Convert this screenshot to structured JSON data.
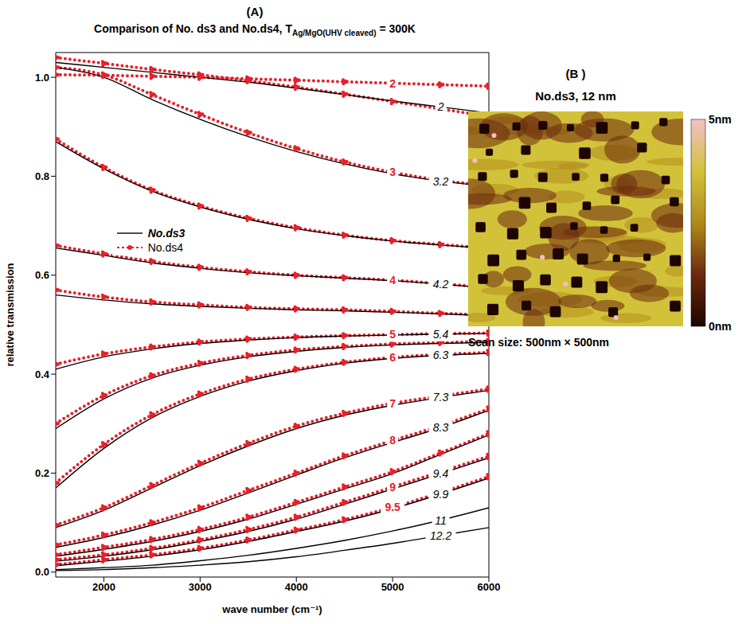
{
  "chart_data": [
    {
      "type": "line",
      "panel_label": "(A)",
      "title": "Comparison of No. ds3 and No.ds4, T",
      "title_subscript": "Ag/MgO(UHV cleaved)",
      "title_suffix": " = 300K",
      "x_label": "wave number (cm⁻¹)",
      "y_label": "relative transmission",
      "x": [
        1500,
        2000,
        2500,
        3000,
        3500,
        4000,
        4500,
        5000,
        5500,
        6000
      ],
      "xlim": [
        1500,
        6000
      ],
      "xticks": [
        2000,
        3000,
        4000,
        5000,
        6000
      ],
      "ylim": [
        -0.01,
        1.05
      ],
      "yticks": [
        {
          "value": 0,
          "label": "0.0"
        },
        0.2,
        0.4,
        0.6,
        0.8,
        {
          "value": 1,
          "label": "1.0"
        }
      ],
      "legend": "left",
      "series": [
        {
          "name": "No.ds4",
          "color": "#e8202a",
          "line_style": "dotted",
          "marker": "circle",
          "curves": [
            {
              "label": 2,
              "values": [
                1.005,
                1.004,
                1.002,
                1.0,
                0.997,
                0.994,
                0.991,
                0.988,
                0.985,
                0.982
              ]
            },
            {
              "label": null,
              "values": [
                1.04,
                1.028,
                1.016,
                1.005,
                0.993,
                0.98,
                0.966,
                0.951,
                0.936,
                0.921
              ]
            },
            {
              "label": 3,
              "values": [
                1.02,
                1.005,
                0.965,
                0.925,
                0.888,
                0.856,
                0.829,
                0.808,
                0.792,
                0.781
              ]
            },
            {
              "label": null,
              "values": [
                0.875,
                0.818,
                0.772,
                0.74,
                0.715,
                0.696,
                0.681,
                0.67,
                0.662,
                0.655
              ]
            },
            {
              "label": 4,
              "values": [
                0.66,
                0.643,
                0.628,
                0.616,
                0.607,
                0.6,
                0.595,
                0.59,
                0.583,
                0.575
              ]
            },
            {
              "label": null,
              "values": [
                0.57,
                0.556,
                0.546,
                0.54,
                0.535,
                0.532,
                0.53,
                0.527,
                0.523,
                0.52
              ]
            },
            {
              "label": 5,
              "values": [
                0.42,
                0.441,
                0.455,
                0.465,
                0.471,
                0.475,
                0.478,
                0.48,
                0.482,
                0.483
              ]
            },
            {
              "label": null,
              "values": [
                0.3,
                0.357,
                0.397,
                0.422,
                0.438,
                0.449,
                0.456,
                0.461,
                0.464,
                0.466
              ]
            },
            {
              "label": 6,
              "values": [
                0.18,
                0.258,
                0.318,
                0.36,
                0.39,
                0.41,
                0.424,
                0.434,
                0.44,
                0.444
              ]
            },
            {
              "label": 7,
              "values": [
                0.095,
                0.13,
                0.175,
                0.22,
                0.26,
                0.295,
                0.321,
                0.341,
                0.356,
                0.37
              ]
            },
            {
              "label": 8,
              "values": [
                0.055,
                0.075,
                0.1,
                0.13,
                0.165,
                0.2,
                0.235,
                0.266,
                0.296,
                0.33
              ]
            },
            {
              "label": null,
              "values": [
                0.035,
                0.05,
                0.066,
                0.086,
                0.111,
                0.141,
                0.172,
                0.203,
                0.241,
                0.28
              ]
            },
            {
              "label": 9,
              "values": [
                0.025,
                0.035,
                0.048,
                0.065,
                0.086,
                0.111,
                0.141,
                0.172,
                0.203,
                0.234
              ]
            },
            {
              "label": 9.5,
              "values": [
                0.015,
                0.025,
                0.035,
                0.048,
                0.065,
                0.085,
                0.106,
                0.131,
                0.161,
                0.193
              ]
            }
          ]
        },
        {
          "name": "No.ds3",
          "color": "#000000",
          "line_style": "solid",
          "marker": "none",
          "curves": [
            {
              "label": 2,
              "values": [
                1.03,
                1.02,
                1.01,
                1.0,
                0.99,
                0.978,
                0.965,
                0.952,
                0.94,
                0.928
              ]
            },
            {
              "label": 3.2,
              "values": [
                1.02,
                1.0,
                0.955,
                0.915,
                0.88,
                0.85,
                0.825,
                0.805,
                0.79,
                0.78
              ]
            },
            {
              "label": null,
              "values": [
                0.87,
                0.815,
                0.77,
                0.738,
                0.713,
                0.694,
                0.68,
                0.669,
                0.661,
                0.654
              ]
            },
            {
              "label": 4.2,
              "values": [
                0.655,
                0.64,
                0.625,
                0.614,
                0.605,
                0.599,
                0.594,
                0.589,
                0.582,
                0.574
              ]
            },
            {
              "label": null,
              "values": [
                0.56,
                0.55,
                0.542,
                0.537,
                0.533,
                0.53,
                0.528,
                0.525,
                0.522,
                0.518
              ]
            },
            {
              "label": 5.4,
              "values": [
                0.41,
                0.435,
                0.451,
                0.462,
                0.469,
                0.474,
                0.477,
                0.479,
                0.481,
                0.482
              ]
            },
            {
              "label": null,
              "values": [
                0.29,
                0.35,
                0.392,
                0.418,
                0.435,
                0.446,
                0.454,
                0.459,
                0.462,
                0.464
              ]
            },
            {
              "label": 6.3,
              "values": [
                0.17,
                0.25,
                0.312,
                0.355,
                0.386,
                0.407,
                0.422,
                0.432,
                0.438,
                0.442
              ]
            },
            {
              "label": 7.3,
              "values": [
                0.09,
                0.125,
                0.17,
                0.215,
                0.255,
                0.29,
                0.317,
                0.337,
                0.353,
                0.367
              ]
            },
            {
              "label": 8.3,
              "values": [
                0.05,
                0.07,
                0.095,
                0.125,
                0.16,
                0.196,
                0.231,
                0.262,
                0.292,
                0.327
              ]
            },
            {
              "label": null,
              "values": [
                0.032,
                0.046,
                0.062,
                0.082,
                0.107,
                0.137,
                0.168,
                0.199,
                0.238,
                0.277
              ]
            },
            {
              "label": 9.4,
              "values": [
                0.022,
                0.032,
                0.045,
                0.062,
                0.082,
                0.107,
                0.137,
                0.168,
                0.199,
                0.231
              ]
            },
            {
              "label": 9.9,
              "values": [
                0.013,
                0.022,
                0.032,
                0.045,
                0.062,
                0.082,
                0.103,
                0.128,
                0.158,
                0.19
              ]
            },
            {
              "label": 11,
              "values": [
                0.005,
                0.009,
                0.014,
                0.023,
                0.034,
                0.048,
                0.064,
                0.083,
                0.105,
                0.13
              ]
            },
            {
              "label": 12.2,
              "values": [
                0.003,
                0.005,
                0.009,
                0.014,
                0.021,
                0.031,
                0.044,
                0.058,
                0.074,
                0.09
              ]
            }
          ]
        }
      ]
    },
    {
      "type": "image",
      "panel_label": "(B )",
      "title": "No.ds3, 12 nm",
      "caption": "Scan size: 500nm × 500nm",
      "colorbar": {
        "range": [
          0,
          5
        ],
        "ticks": [
          {
            "value": 5,
            "label": "5nm"
          },
          {
            "value": 0,
            "label": "0nm"
          }
        ],
        "colors": [
          "#1e0500",
          "#6b2a0e",
          "#b08a1a",
          "#d2c23a",
          "#f2c0c8"
        ]
      }
    }
  ]
}
